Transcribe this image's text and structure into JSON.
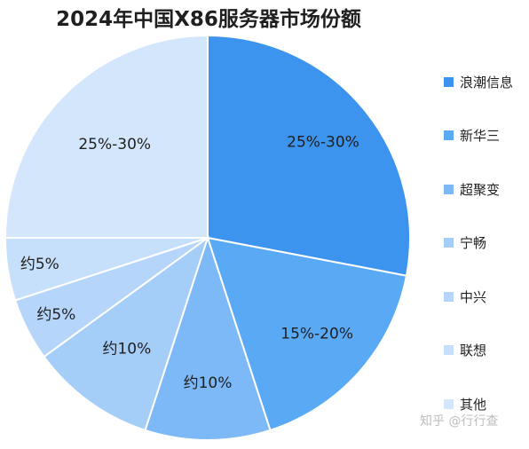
{
  "chart_data": {
    "type": "pie",
    "title": "2024年中国X86服务器市场份额",
    "slices": [
      {
        "name": "浪潮信息",
        "label": "25%-30%",
        "value": 28,
        "color": "#3c94ee"
      },
      {
        "name": "新华三",
        "label": "15%-20%",
        "value": 17,
        "color": "#5aa9f5"
      },
      {
        "name": "超聚变",
        "label": "约10%",
        "value": 10,
        "color": "#7db9f6"
      },
      {
        "name": "宁畅",
        "label": "约10%",
        "value": 10,
        "color": "#a4cdf8"
      },
      {
        "name": "中兴",
        "label": "约5%",
        "value": 5,
        "color": "#b5d6fa"
      },
      {
        "name": "联想",
        "label": "约5%",
        "value": 5,
        "color": "#c6dffa"
      },
      {
        "name": "其他",
        "label": "25%-30%",
        "value": 25,
        "color": "#d3e6fb"
      }
    ],
    "legend_position": "right"
  },
  "watermark": "知乎 @行行查"
}
